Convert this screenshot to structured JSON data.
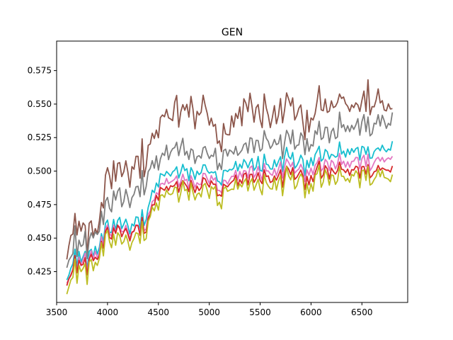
{
  "chart_data": {
    "type": "line",
    "title": "GEN",
    "xlabel": "",
    "ylabel": "",
    "xlim": [
      3500,
      6950
    ],
    "ylim": [
      0.402,
      0.597
    ],
    "xticks": [
      3500,
      4000,
      4500,
      5000,
      5500,
      6000,
      6500
    ],
    "xtick_labels": [
      "3500",
      "4000",
      "4500",
      "5000",
      "5500",
      "6000",
      "6500"
    ],
    "yticks": [
      0.425,
      0.45,
      0.475,
      0.5,
      0.525,
      0.55,
      0.575
    ],
    "ytick_labels": [
      "0.425",
      "0.450",
      "0.475",
      "0.500",
      "0.525",
      "0.550",
      "0.575"
    ],
    "grid": false,
    "x_start": 3600,
    "x_step": 20,
    "x_end": 6800,
    "series": [
      {
        "color": "#8c564b",
        "anchors": [
          [
            3600,
            0.447
          ],
          [
            3700,
            0.462
          ],
          [
            3800,
            0.455
          ],
          [
            3900,
            0.458
          ],
          [
            4000,
            0.49
          ],
          [
            4100,
            0.508
          ],
          [
            4200,
            0.498
          ],
          [
            4300,
            0.505
          ],
          [
            4400,
            0.513
          ],
          [
            4500,
            0.533
          ],
          [
            4600,
            0.538
          ],
          [
            4700,
            0.548
          ],
          [
            4800,
            0.54
          ],
          [
            4900,
            0.538
          ],
          [
            5000,
            0.548
          ],
          [
            5100,
            0.52
          ],
          [
            5200,
            0.53
          ],
          [
            5300,
            0.538
          ],
          [
            5400,
            0.55
          ],
          [
            5500,
            0.543
          ],
          [
            5600,
            0.545
          ],
          [
            5700,
            0.542
          ],
          [
            5800,
            0.548
          ],
          [
            5900,
            0.535
          ],
          [
            6000,
            0.545
          ],
          [
            6100,
            0.545
          ],
          [
            6200,
            0.548
          ],
          [
            6300,
            0.548
          ],
          [
            6400,
            0.55
          ],
          [
            6500,
            0.556
          ],
          [
            6600,
            0.55
          ],
          [
            6700,
            0.552
          ],
          [
            6800,
            0.548
          ]
        ]
      },
      {
        "color": "#7f7f7f",
        "anchors": [
          [
            3600,
            0.438
          ],
          [
            3700,
            0.448
          ],
          [
            3800,
            0.448
          ],
          [
            3900,
            0.455
          ],
          [
            4000,
            0.47
          ],
          [
            4100,
            0.488
          ],
          [
            4200,
            0.48
          ],
          [
            4300,
            0.488
          ],
          [
            4400,
            0.494
          ],
          [
            4500,
            0.508
          ],
          [
            4600,
            0.51
          ],
          [
            4700,
            0.516
          ],
          [
            4800,
            0.511
          ],
          [
            4900,
            0.51
          ],
          [
            5000,
            0.516
          ],
          [
            5100,
            0.505
          ],
          [
            5200,
            0.51
          ],
          [
            5300,
            0.512
          ],
          [
            5400,
            0.522
          ],
          [
            5500,
            0.52
          ],
          [
            5600,
            0.522
          ],
          [
            5700,
            0.52
          ],
          [
            5800,
            0.525
          ],
          [
            5900,
            0.518
          ],
          [
            6000,
            0.525
          ],
          [
            6100,
            0.525
          ],
          [
            6200,
            0.528
          ],
          [
            6300,
            0.53
          ],
          [
            6400,
            0.532
          ],
          [
            6500,
            0.536
          ],
          [
            6600,
            0.53
          ],
          [
            6700,
            0.535
          ],
          [
            6800,
            0.54
          ]
        ]
      },
      {
        "color": "#17becf",
        "anchors": [
          [
            3600,
            0.427
          ],
          [
            3700,
            0.435
          ],
          [
            3800,
            0.437
          ],
          [
            3900,
            0.444
          ],
          [
            4000,
            0.455
          ],
          [
            4100,
            0.466
          ],
          [
            4200,
            0.46
          ],
          [
            4300,
            0.462
          ],
          [
            4400,
            0.468
          ],
          [
            4500,
            0.494
          ],
          [
            4600,
            0.496
          ],
          [
            4700,
            0.5
          ],
          [
            4800,
            0.496
          ],
          [
            4900,
            0.497
          ],
          [
            5000,
            0.502
          ],
          [
            5100,
            0.492
          ],
          [
            5200,
            0.498
          ],
          [
            5300,
            0.502
          ],
          [
            5400,
            0.506
          ],
          [
            5500,
            0.505
          ],
          [
            5600,
            0.508
          ],
          [
            5700,
            0.506
          ],
          [
            5800,
            0.51
          ],
          [
            5900,
            0.504
          ],
          [
            6000,
            0.51
          ],
          [
            6100,
            0.51
          ],
          [
            6200,
            0.512
          ],
          [
            6300,
            0.512
          ],
          [
            6400,
            0.514
          ],
          [
            6500,
            0.516
          ],
          [
            6600,
            0.512
          ],
          [
            6700,
            0.516
          ],
          [
            6800,
            0.522
          ]
        ]
      },
      {
        "color": "#e377c2",
        "anchors": [
          [
            3600,
            0.424
          ],
          [
            3700,
            0.432
          ],
          [
            3800,
            0.434
          ],
          [
            3900,
            0.44
          ],
          [
            4000,
            0.452
          ],
          [
            4100,
            0.462
          ],
          [
            4200,
            0.456
          ],
          [
            4300,
            0.458
          ],
          [
            4400,
            0.463
          ],
          [
            4500,
            0.488
          ],
          [
            4600,
            0.49
          ],
          [
            4700,
            0.494
          ],
          [
            4800,
            0.49
          ],
          [
            4900,
            0.49
          ],
          [
            5000,
            0.496
          ],
          [
            5100,
            0.486
          ],
          [
            5200,
            0.491
          ],
          [
            5300,
            0.496
          ],
          [
            5400,
            0.5
          ],
          [
            5500,
            0.499
          ],
          [
            5600,
            0.502
          ],
          [
            5700,
            0.5
          ],
          [
            5800,
            0.503
          ],
          [
            5900,
            0.498
          ],
          [
            6000,
            0.503
          ],
          [
            6100,
            0.503
          ],
          [
            6200,
            0.505
          ],
          [
            6300,
            0.505
          ],
          [
            6400,
            0.507
          ],
          [
            6500,
            0.509
          ],
          [
            6600,
            0.505
          ],
          [
            6700,
            0.508
          ],
          [
            6800,
            0.512
          ]
        ]
      },
      {
        "color": "#d62728",
        "anchors": [
          [
            3600,
            0.422
          ],
          [
            3700,
            0.43
          ],
          [
            3800,
            0.432
          ],
          [
            3900,
            0.438
          ],
          [
            4000,
            0.45
          ],
          [
            4100,
            0.46
          ],
          [
            4200,
            0.454
          ],
          [
            4300,
            0.456
          ],
          [
            4400,
            0.46
          ],
          [
            4500,
            0.484
          ],
          [
            4600,
            0.486
          ],
          [
            4700,
            0.49
          ],
          [
            4800,
            0.486
          ],
          [
            4900,
            0.486
          ],
          [
            5000,
            0.492
          ],
          [
            5100,
            0.483
          ],
          [
            5200,
            0.488
          ],
          [
            5300,
            0.492
          ],
          [
            5400,
            0.496
          ],
          [
            5500,
            0.495
          ],
          [
            5600,
            0.497
          ],
          [
            5700,
            0.495
          ],
          [
            5800,
            0.499
          ],
          [
            5900,
            0.494
          ],
          [
            6000,
            0.498
          ],
          [
            6100,
            0.498
          ],
          [
            6200,
            0.5
          ],
          [
            6300,
            0.499
          ],
          [
            6400,
            0.5
          ],
          [
            6500,
            0.502
          ],
          [
            6600,
            0.499
          ],
          [
            6700,
            0.501
          ],
          [
            6800,
            0.503
          ]
        ]
      },
      {
        "color": "#bcbd22",
        "anchors": [
          [
            3600,
            0.418
          ],
          [
            3700,
            0.426
          ],
          [
            3800,
            0.428
          ],
          [
            3900,
            0.434
          ],
          [
            4000,
            0.445
          ],
          [
            4100,
            0.455
          ],
          [
            4200,
            0.449
          ],
          [
            4300,
            0.451
          ],
          [
            4400,
            0.456
          ],
          [
            4500,
            0.479
          ],
          [
            4600,
            0.481
          ],
          [
            4700,
            0.485
          ],
          [
            4800,
            0.481
          ],
          [
            4900,
            0.481
          ],
          [
            5000,
            0.487
          ],
          [
            5100,
            0.478
          ],
          [
            5200,
            0.483
          ],
          [
            5300,
            0.487
          ],
          [
            5400,
            0.491
          ],
          [
            5500,
            0.49
          ],
          [
            5600,
            0.492
          ],
          [
            5700,
            0.49
          ],
          [
            5800,
            0.494
          ],
          [
            5900,
            0.489
          ],
          [
            6000,
            0.493
          ],
          [
            6100,
            0.493
          ],
          [
            6200,
            0.495
          ],
          [
            6300,
            0.494
          ],
          [
            6400,
            0.495
          ],
          [
            6500,
            0.497
          ],
          [
            6600,
            0.494
          ],
          [
            6700,
            0.496
          ],
          [
            6800,
            0.498
          ]
        ]
      }
    ]
  }
}
